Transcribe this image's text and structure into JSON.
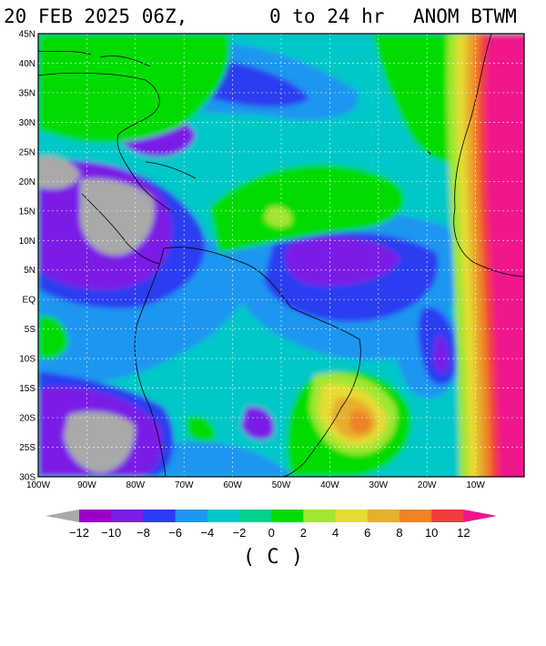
{
  "header": {
    "date_time": "20 FEB 2025 06Z,",
    "range": "0 to  24 hr",
    "field": "ANOM BTWM"
  },
  "map": {
    "lat_labels": [
      "45N",
      "40N",
      "35N",
      "30N",
      "25N",
      "20N",
      "15N",
      "10N",
      "5N",
      "EQ",
      "5S",
      "10S",
      "15S",
      "20S",
      "25S",
      "30S"
    ],
    "lon_labels": [
      "100W",
      "90W",
      "80W",
      "70W",
      "60W",
      "50W",
      "40W",
      "30W",
      "20W",
      "10W"
    ],
    "colors": {
      "deep_purple": "#9b00c8",
      "purple": "#7a1fe6",
      "blue": "#2c3cf0",
      "light_blue": "#1e96f0",
      "cyan": "#00c8c8",
      "teal_green": "#00d28c",
      "green": "#00dc00",
      "light_green": "#a0e632",
      "yellow": "#e6dc32",
      "gold": "#e6af2d",
      "orange": "#f08228",
      "red": "#f03c3c",
      "magenta": "#f0148c",
      "gray": "#a9a9a9"
    }
  },
  "colorbar": {
    "tick_labels": [
      "-12",
      "-10",
      "-8",
      "-6",
      "-4",
      "-2",
      "0",
      "2",
      "4",
      "6",
      "8",
      "10",
      "12"
    ],
    "segment_colors": [
      "#9b00c8",
      "#7a1fe6",
      "#2c3cf0",
      "#1e96f0",
      "#00c8c8",
      "#00d28c",
      "#00dc00",
      "#a0e632",
      "#e6dc32",
      "#e6af2d",
      "#f08228",
      "#f03c3c"
    ],
    "low_end_color": "#a9a9a9",
    "high_end_color": "#f0148c",
    "units": "( C )"
  }
}
